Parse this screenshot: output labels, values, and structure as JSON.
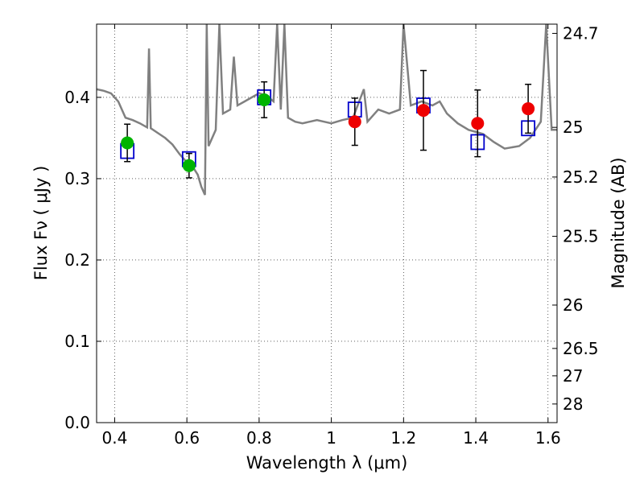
{
  "chart_data": {
    "type": "scatter",
    "xlabel": "Wavelength  λ (μm)",
    "ylabel": "Flux  Fν  ( μJy )",
    "y2label": "Magnitude (AB)",
    "xlim": [
      0.35,
      1.625
    ],
    "ylim": [
      0.0,
      0.49
    ],
    "grid": true,
    "x_ticks": [
      0.4,
      0.6,
      0.8,
      1.0,
      1.2,
      1.4,
      1.6
    ],
    "x_tick_labels": [
      "0.4",
      "0.6",
      "0.8",
      "1",
      "1.2",
      "1.4",
      "1.6"
    ],
    "y_ticks": [
      0.0,
      0.1,
      0.2,
      0.3,
      0.4
    ],
    "y_tick_labels": [
      "0.0",
      "0.1",
      "0.2",
      "0.3",
      "0.4"
    ],
    "mag_ticks": [
      24.7,
      25,
      25.2,
      25.5,
      26,
      26.5,
      27,
      28
    ],
    "mag_tick_labels": [
      "24.7",
      "25",
      "25.2",
      "25.5",
      "26",
      "26.5",
      "27",
      "28"
    ],
    "series": [
      {
        "marker": "circle",
        "color": "#00b400",
        "points": [
          {
            "x": 0.435,
            "y": 0.344,
            "err": 0.023
          },
          {
            "x": 0.606,
            "y": 0.316,
            "err": 0.015
          },
          {
            "x": 0.814,
            "y": 0.397,
            "err": 0.022
          }
        ]
      },
      {
        "marker": "circle",
        "color": "#ee0000",
        "points": [
          {
            "x": 1.065,
            "y": 0.37,
            "err": 0.029
          },
          {
            "x": 1.255,
            "y": 0.384,
            "err": 0.049
          },
          {
            "x": 1.405,
            "y": 0.368,
            "err": 0.041
          },
          {
            "x": 1.545,
            "y": 0.386,
            "err": 0.03
          }
        ]
      },
      {
        "marker": "open-square",
        "color": "#0000cc",
        "points": [
          {
            "x": 0.435,
            "y": 0.334
          },
          {
            "x": 0.606,
            "y": 0.324
          },
          {
            "x": 0.814,
            "y": 0.4
          },
          {
            "x": 1.065,
            "y": 0.385
          },
          {
            "x": 1.255,
            "y": 0.39
          },
          {
            "x": 1.405,
            "y": 0.345
          },
          {
            "x": 1.545,
            "y": 0.362
          }
        ]
      },
      {
        "marker": "line",
        "color": "#808080",
        "points": [
          [
            0.35,
            0.41
          ],
          [
            0.37,
            0.408
          ],
          [
            0.39,
            0.405
          ],
          [
            0.41,
            0.395
          ],
          [
            0.43,
            0.375
          ],
          [
            0.45,
            0.372
          ],
          [
            0.47,
            0.368
          ],
          [
            0.49,
            0.363
          ],
          [
            0.495,
            0.46
          ],
          [
            0.5,
            0.362
          ],
          [
            0.52,
            0.356
          ],
          [
            0.54,
            0.35
          ],
          [
            0.56,
            0.342
          ],
          [
            0.58,
            0.33
          ],
          [
            0.6,
            0.32
          ],
          [
            0.62,
            0.312
          ],
          [
            0.63,
            0.305
          ],
          [
            0.64,
            0.29
          ],
          [
            0.65,
            0.28
          ],
          [
            0.655,
            0.49
          ],
          [
            0.66,
            0.34
          ],
          [
            0.68,
            0.36
          ],
          [
            0.69,
            0.49
          ],
          [
            0.7,
            0.38
          ],
          [
            0.72,
            0.385
          ],
          [
            0.73,
            0.45
          ],
          [
            0.74,
            0.39
          ],
          [
            0.76,
            0.395
          ],
          [
            0.78,
            0.4
          ],
          [
            0.8,
            0.405
          ],
          [
            0.82,
            0.402
          ],
          [
            0.84,
            0.395
          ],
          [
            0.85,
            0.49
          ],
          [
            0.86,
            0.385
          ],
          [
            0.87,
            0.49
          ],
          [
            0.88,
            0.375
          ],
          [
            0.9,
            0.37
          ],
          [
            0.92,
            0.368
          ],
          [
            0.94,
            0.37
          ],
          [
            0.96,
            0.372
          ],
          [
            0.98,
            0.37
          ],
          [
            1.0,
            0.368
          ],
          [
            1.03,
            0.372
          ],
          [
            1.06,
            0.375
          ],
          [
            1.09,
            0.41
          ],
          [
            1.1,
            0.37
          ],
          [
            1.13,
            0.385
          ],
          [
            1.16,
            0.38
          ],
          [
            1.19,
            0.385
          ],
          [
            1.2,
            0.49
          ],
          [
            1.22,
            0.39
          ],
          [
            1.25,
            0.395
          ],
          [
            1.28,
            0.39
          ],
          [
            1.3,
            0.395
          ],
          [
            1.32,
            0.38
          ],
          [
            1.35,
            0.368
          ],
          [
            1.38,
            0.36
          ],
          [
            1.42,
            0.355
          ],
          [
            1.45,
            0.345
          ],
          [
            1.48,
            0.337
          ],
          [
            1.52,
            0.34
          ],
          [
            1.55,
            0.35
          ],
          [
            1.58,
            0.37
          ],
          [
            1.595,
            0.49
          ],
          [
            1.61,
            0.36
          ],
          [
            1.625,
            0.36
          ]
        ]
      }
    ]
  }
}
